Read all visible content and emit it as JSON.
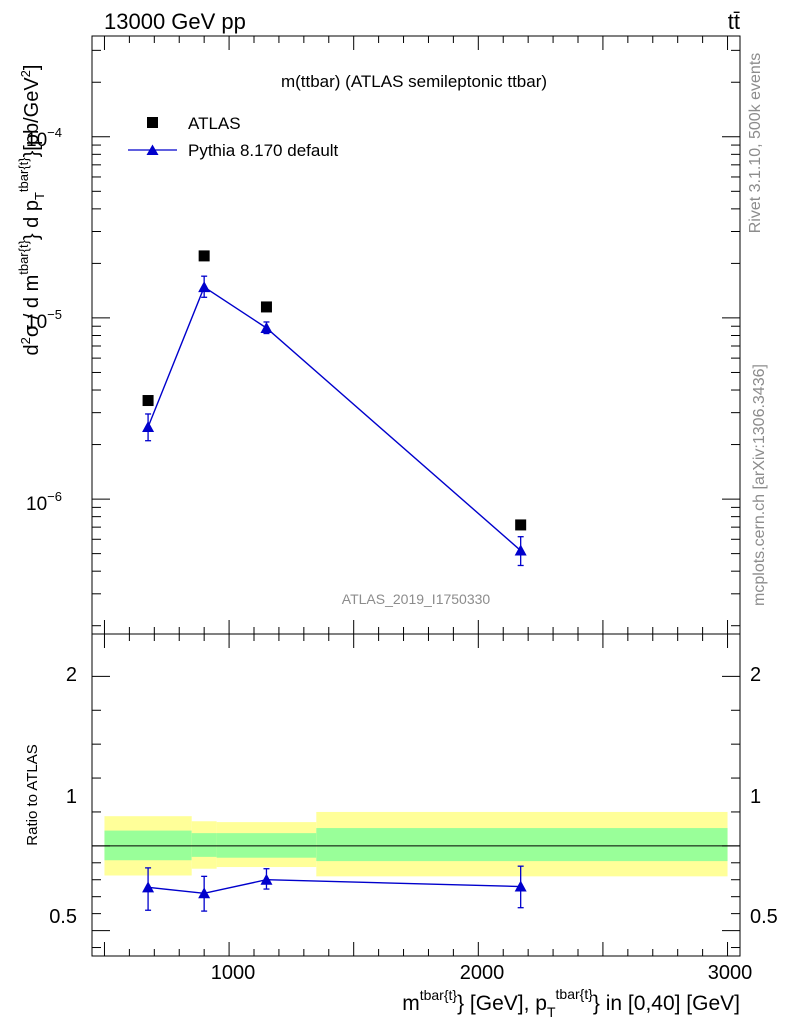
{
  "header": {
    "left": "13000 GeV pp",
    "right": "tt̄"
  },
  "side_labels": {
    "rivet": "Rivet 3.1.10,  500k events",
    "mcplots": "mcplots.cern.ch [arXiv:1306.3436]"
  },
  "chart_data": [
    {
      "type": "scatter",
      "title": "m(ttbar) (ATLAS semileptonic ttbar)",
      "watermark": "ATLAS_2019_I1750330",
      "ylabel": "d²σ / d m^{tbar{t}} d p_T^{tbar{t}} [pb/GeV²]",
      "yscale": "log",
      "ylim": [
        1.8e-07,
        0.00036
      ],
      "xlim": [
        450,
        3050
      ],
      "ytick_labels": [
        {
          "value": 0.0001,
          "base": "10",
          "exp": "−4"
        },
        {
          "value": 1e-05,
          "base": "10",
          "exp": "−5"
        },
        {
          "value": 1e-06,
          "base": "10",
          "exp": "−6"
        }
      ],
      "legend": {
        "position": "top-left",
        "entries": [
          "ATLAS",
          "Pythia 8.170 default"
        ]
      },
      "series": [
        {
          "name": "ATLAS",
          "marker": "square",
          "color": "#000000",
          "x": [
            675,
            900,
            1150,
            2170
          ],
          "y": [
            3.5e-06,
            2.2e-05,
            1.15e-05,
            7.2e-07
          ]
        },
        {
          "name": "Pythia 8.170 default",
          "marker": "triangle",
          "color": "#0000cc",
          "x": [
            675,
            900,
            1150,
            2170
          ],
          "y": [
            2.5e-06,
            1.48e-05,
            8.8e-06,
            5.2e-07
          ],
          "yerr_low": [
            2.1e-06,
            1.3e-05,
            8.2e-06,
            4.3e-07
          ],
          "yerr_high": [
            2.95e-06,
            1.7e-05,
            9.5e-06,
            6.2e-07
          ]
        }
      ]
    },
    {
      "type": "line",
      "ylabel": "Ratio to ATLAS",
      "xlabel": "m^{tbar{t}} [GeV], p_T^{tbar{t}} in [0,40] [GeV]",
      "xlim": [
        450,
        3050
      ],
      "ylim": [
        0.35,
        2.25
      ],
      "xtick_labels": [
        {
          "value": 1000,
          "label": "1000"
        },
        {
          "value": 2000,
          "label": "2000"
        },
        {
          "value": 3000,
          "label": "3000"
        }
      ],
      "ytick_labels": [
        {
          "value": 2,
          "label": "2"
        },
        {
          "value": 1,
          "label": "1"
        },
        {
          "value": 0.5,
          "label": "0.5"
        }
      ],
      "bands": [
        {
          "x0": 500,
          "x1": 850,
          "stat_lo": 0.915,
          "stat_hi": 1.09,
          "tot_lo": 0.825,
          "tot_hi": 1.175
        },
        {
          "x0": 850,
          "x1": 950,
          "stat_lo": 0.935,
          "stat_hi": 1.075,
          "tot_lo": 0.865,
          "tot_hi": 1.145
        },
        {
          "x0": 950,
          "x1": 1350,
          "stat_lo": 0.93,
          "stat_hi": 1.075,
          "tot_lo": 0.875,
          "tot_hi": 1.14
        },
        {
          "x0": 1350,
          "x1": 3000,
          "stat_lo": 0.91,
          "stat_hi": 1.105,
          "tot_lo": 0.82,
          "tot_hi": 1.2
        }
      ],
      "series": [
        {
          "name": "Pythia 8.170 default / ATLAS",
          "color": "#0000cc",
          "x": [
            675,
            900,
            1150,
            2170
          ],
          "y": [
            0.755,
            0.72,
            0.8,
            0.76
          ],
          "yerr_low": [
            0.62,
            0.615,
            0.745,
            0.635
          ],
          "yerr_high": [
            0.87,
            0.82,
            0.865,
            0.88
          ]
        }
      ]
    }
  ]
}
